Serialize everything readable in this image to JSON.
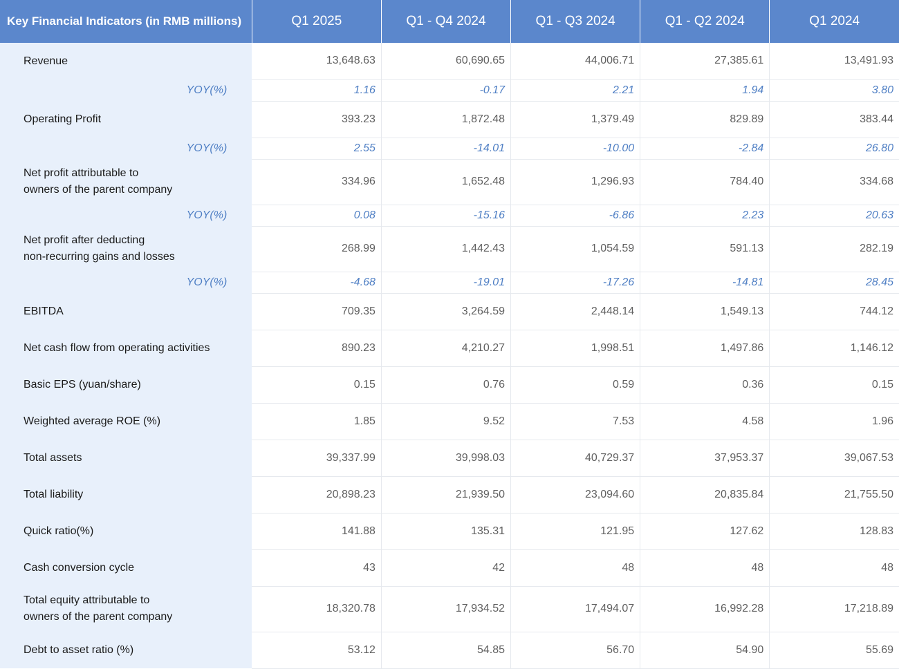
{
  "header": {
    "label": "Key Financial Indicators (in RMB millions)",
    "periods": [
      "Q1 2025",
      "Q1 - Q4 2024",
      "Q1 - Q3 2024",
      "Q1 - Q2 2024",
      "Q1 2024"
    ]
  },
  "colors": {
    "header_bg": "#5b87cc",
    "label_bg": "#e8f0fb",
    "yoy_text": "#4f7fc4"
  },
  "rows": [
    {
      "label": "Revenue",
      "values": [
        "13,648.63",
        "60,690.65",
        "44,006.71",
        "27,385.61",
        "13,491.93"
      ]
    },
    {
      "label": "YOY(%)",
      "yoy": true,
      "values": [
        "1.16",
        "-0.17",
        "2.21",
        "1.94",
        "3.80"
      ]
    },
    {
      "label": "Operating Profit",
      "values": [
        "393.23",
        "1,872.48",
        "1,379.49",
        "829.89",
        "383.44"
      ]
    },
    {
      "label": "YOY(%)",
      "yoy": true,
      "values": [
        "2.55",
        "-14.01",
        "-10.00",
        "-2.84",
        "26.80"
      ]
    },
    {
      "label": "Net profit attributable to",
      "label2": "owners of the parent company",
      "values": [
        "334.96",
        "1,652.48",
        "1,296.93",
        "784.40",
        "334.68"
      ]
    },
    {
      "label": "YOY(%)",
      "yoy": true,
      "values": [
        "0.08",
        "-15.16",
        "-6.86",
        "2.23",
        "20.63"
      ]
    },
    {
      "label": "Net profit after deducting",
      "label2": "non-recurring gains and losses",
      "values": [
        "268.99",
        "1,442.43",
        "1,054.59",
        "591.13",
        "282.19"
      ]
    },
    {
      "label": "YOY(%)",
      "yoy": true,
      "values": [
        "-4.68",
        "-19.01",
        "-17.26",
        "-14.81",
        "28.45"
      ]
    },
    {
      "label": "EBITDA",
      "values": [
        "709.35",
        "3,264.59",
        "2,448.14",
        "1,549.13",
        "744.12"
      ]
    },
    {
      "label": "Net cash flow from operating activities",
      "values": [
        "890.23",
        "4,210.27",
        "1,998.51",
        "1,497.86",
        "1,146.12"
      ]
    },
    {
      "label": "Basic EPS (yuan/share)",
      "values": [
        "0.15",
        "0.76",
        "0.59",
        "0.36",
        "0.15"
      ]
    },
    {
      "label": "Weighted average ROE (%)",
      "values": [
        "1.85",
        "9.52",
        "7.53",
        "4.58",
        "1.96"
      ]
    },
    {
      "label": "Total assets",
      "values": [
        "39,337.99",
        "39,998.03",
        "40,729.37",
        "37,953.37",
        "39,067.53"
      ]
    },
    {
      "label": "Total liability",
      "values": [
        "20,898.23",
        "21,939.50",
        "23,094.60",
        "20,835.84",
        "21,755.50"
      ]
    },
    {
      "label": "Quick ratio(%)",
      "values": [
        "141.88",
        "135.31",
        "121.95",
        "127.62",
        "128.83"
      ]
    },
    {
      "label": "Cash conversion cycle",
      "values": [
        "43",
        "42",
        "48",
        "48",
        "48"
      ]
    },
    {
      "label": "Total equity attributable to",
      "label2": "owners of the parent company",
      "values": [
        "18,320.78",
        "17,934.52",
        "17,494.07",
        "16,992.28",
        "17,218.89"
      ]
    },
    {
      "label": "Debt to asset ratio (%)",
      "values": [
        "53.12",
        "54.85",
        "56.70",
        "54.90",
        "55.69"
      ]
    }
  ]
}
